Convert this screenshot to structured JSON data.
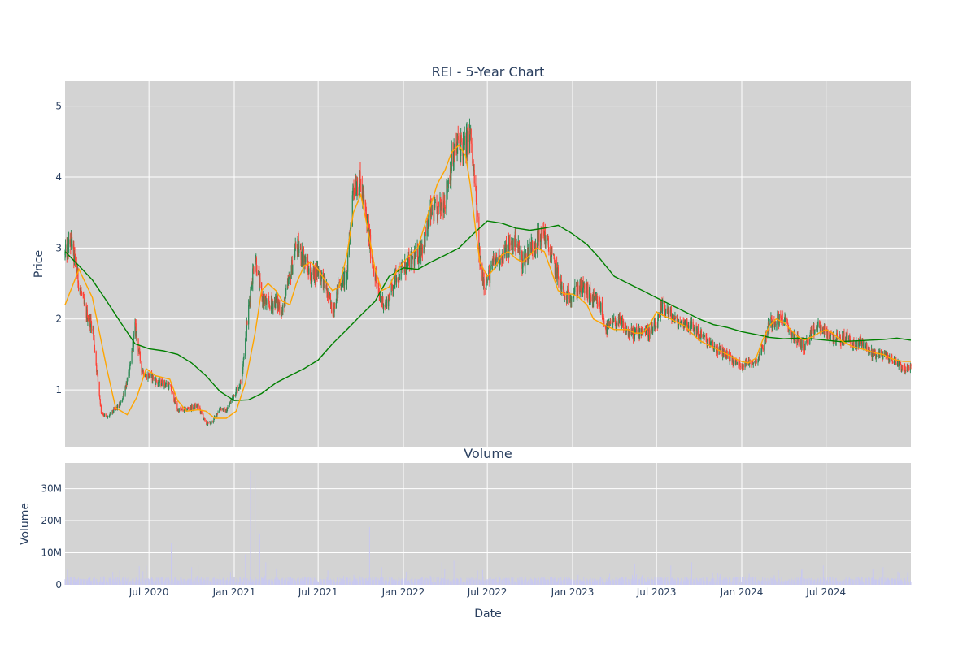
{
  "colors": {
    "page_bg": "#ffffff",
    "plot_bg": "#d3d3d3",
    "grid": "#ffffff",
    "text": "#2a3f5f",
    "candle_up": "#2e8b57",
    "candle_down": "#ff4136",
    "ma_short": "#ffa500",
    "ma_long": "#008000",
    "volume_bar": "#c9c9ef"
  },
  "chart_data": [
    {
      "type": "candlestick",
      "title": "REI - 5-Year Chart",
      "ylabel": "Price",
      "xlabel": "",
      "x_range": [
        "2020-01-02",
        "2024-12-31"
      ],
      "ylim": [
        0.2,
        5.35
      ],
      "yticks": [
        1,
        2,
        3,
        4,
        5
      ],
      "ytick_labels": [
        "1",
        "2",
        "3",
        "4",
        "5"
      ],
      "grid": true,
      "price_path": {
        "x": [
          "2020-01-02",
          "2020-01-15",
          "2020-02-01",
          "2020-02-15",
          "2020-03-01",
          "2020-03-10",
          "2020-03-20",
          "2020-04-01",
          "2020-04-15",
          "2020-05-01",
          "2020-05-20",
          "2020-06-01",
          "2020-06-15",
          "2020-06-25",
          "2020-07-05",
          "2020-07-20",
          "2020-08-01",
          "2020-08-15",
          "2020-09-01",
          "2020-09-15",
          "2020-10-01",
          "2020-10-15",
          "2020-11-01",
          "2020-11-15",
          "2020-12-01",
          "2020-12-15",
          "2021-01-01",
          "2021-01-15",
          "2021-01-25",
          "2021-02-05",
          "2021-02-15",
          "2021-03-01",
          "2021-03-15",
          "2021-04-01",
          "2021-04-15",
          "2021-05-01",
          "2021-05-15",
          "2021-06-01",
          "2021-06-15",
          "2021-07-01",
          "2021-07-15",
          "2021-08-01",
          "2021-08-15",
          "2021-09-01",
          "2021-09-15",
          "2021-10-01",
          "2021-10-15",
          "2021-11-01",
          "2021-11-10",
          "2021-11-25",
          "2021-12-15",
          "2022-01-01",
          "2022-01-15",
          "2022-02-01",
          "2022-02-15",
          "2022-03-01",
          "2022-03-15",
          "2022-04-01",
          "2022-04-15",
          "2022-05-01",
          "2022-05-15",
          "2022-05-25",
          "2022-06-05",
          "2022-06-15",
          "2022-06-25",
          "2022-07-05",
          "2022-07-15",
          "2022-08-01",
          "2022-08-15",
          "2022-09-01",
          "2022-09-15",
          "2022-10-01",
          "2022-10-15",
          "2022-11-01",
          "2022-11-15",
          "2022-12-01",
          "2022-12-15",
          "2023-01-01",
          "2023-01-15",
          "2023-02-01",
          "2023-02-15",
          "2023-03-01",
          "2023-03-15",
          "2023-04-01",
          "2023-04-15",
          "2023-05-01",
          "2023-05-15",
          "2023-06-01",
          "2023-06-15",
          "2023-07-01",
          "2023-07-15",
          "2023-08-01",
          "2023-08-15",
          "2023-09-01",
          "2023-09-15",
          "2023-10-01",
          "2023-10-15",
          "2023-11-01",
          "2023-11-15",
          "2023-12-01",
          "2023-12-15",
          "2024-01-01",
          "2024-01-15",
          "2024-02-01",
          "2024-02-15",
          "2024-03-01",
          "2024-03-15",
          "2024-04-01",
          "2024-04-15",
          "2024-05-01",
          "2024-05-15",
          "2024-06-01",
          "2024-06-15",
          "2024-07-01",
          "2024-07-15",
          "2024-08-01",
          "2024-08-15",
          "2024-09-01",
          "2024-09-15",
          "2024-10-01",
          "2024-10-15",
          "2024-11-01",
          "2024-11-15",
          "2024-12-01",
          "2024-12-15",
          "2024-12-31"
        ],
        "y": [
          2.9,
          3.1,
          2.5,
          2.1,
          1.9,
          1.3,
          0.7,
          0.6,
          0.7,
          0.8,
          1.25,
          1.9,
          1.3,
          1.2,
          1.2,
          1.1,
          1.1,
          1.05,
          0.72,
          0.72,
          0.75,
          0.78,
          0.52,
          0.55,
          0.75,
          0.7,
          0.95,
          1.1,
          1.7,
          2.4,
          2.9,
          2.3,
          2.2,
          2.25,
          2.1,
          2.6,
          3.05,
          2.85,
          2.6,
          2.7,
          2.5,
          2.1,
          2.5,
          2.6,
          3.9,
          3.9,
          3.3,
          2.6,
          2.3,
          2.2,
          2.6,
          2.7,
          2.8,
          2.9,
          3.1,
          3.5,
          3.5,
          3.7,
          4.2,
          4.5,
          4.4,
          4.6,
          3.8,
          2.8,
          2.5,
          2.6,
          2.8,
          2.9,
          3.0,
          3.1,
          2.8,
          3.0,
          3.1,
          3.2,
          2.9,
          2.6,
          2.3,
          2.35,
          2.45,
          2.4,
          2.25,
          2.2,
          1.85,
          1.95,
          1.95,
          1.8,
          1.8,
          1.85,
          1.8,
          1.9,
          2.2,
          2.05,
          1.95,
          1.95,
          1.9,
          1.8,
          1.7,
          1.6,
          1.55,
          1.5,
          1.4,
          1.35,
          1.4,
          1.4,
          1.6,
          1.95,
          2.0,
          2.0,
          1.8,
          1.7,
          1.6,
          1.8,
          1.9,
          1.8,
          1.75,
          1.7,
          1.75,
          1.6,
          1.7,
          1.55,
          1.5,
          1.5,
          1.45,
          1.4,
          1.3,
          1.3
        ]
      },
      "ma_short_path": {
        "x": [
          "2020-01-02",
          "2020-02-01",
          "2020-03-01",
          "2020-04-01",
          "2020-04-20",
          "2020-05-15",
          "2020-06-05",
          "2020-06-25",
          "2020-07-15",
          "2020-08-15",
          "2020-09-01",
          "2020-09-20",
          "2020-10-15",
          "2020-11-01",
          "2020-11-20",
          "2020-12-15",
          "2021-01-05",
          "2021-01-25",
          "2021-02-15",
          "2021-03-01",
          "2021-03-15",
          "2021-04-01",
          "2021-04-15",
          "2021-05-01",
          "2021-05-15",
          "2021-06-01",
          "2021-06-15",
          "2021-07-01",
          "2021-07-15",
          "2021-08-01",
          "2021-08-15",
          "2021-09-01",
          "2021-09-15",
          "2021-10-01",
          "2021-10-15",
          "2021-11-01",
          "2021-11-15",
          "2021-12-01",
          "2021-12-15",
          "2022-01-01",
          "2022-01-15",
          "2022-02-01",
          "2022-02-15",
          "2022-03-01",
          "2022-03-15",
          "2022-04-01",
          "2022-04-15",
          "2022-05-01",
          "2022-05-15",
          "2022-05-25",
          "2022-06-05",
          "2022-06-15",
          "2022-07-01",
          "2022-07-15",
          "2022-08-01",
          "2022-08-15",
          "2022-09-01",
          "2022-09-15",
          "2022-10-01",
          "2022-10-15",
          "2022-11-01",
          "2022-11-15",
          "2022-12-01",
          "2022-12-15",
          "2023-01-01",
          "2023-01-15",
          "2023-02-01",
          "2023-02-15",
          "2023-03-01",
          "2023-03-15",
          "2023-04-01",
          "2023-04-15",
          "2023-05-01",
          "2023-05-15",
          "2023-06-01",
          "2023-06-15",
          "2023-07-01",
          "2023-07-15",
          "2023-08-01",
          "2023-08-15",
          "2023-09-01",
          "2023-09-15",
          "2023-10-01",
          "2023-10-15",
          "2023-11-01",
          "2023-11-15",
          "2023-12-01",
          "2023-12-15",
          "2024-01-01",
          "2024-01-15",
          "2024-02-01",
          "2024-02-15",
          "2024-03-01",
          "2024-03-15",
          "2024-04-01",
          "2024-04-15",
          "2024-05-01",
          "2024-05-15",
          "2024-06-01",
          "2024-06-15",
          "2024-07-01",
          "2024-07-15",
          "2024-08-01",
          "2024-08-15",
          "2024-09-01",
          "2024-09-15",
          "2024-10-01",
          "2024-10-15",
          "2024-11-01",
          "2024-11-15",
          "2024-12-01",
          "2024-12-15",
          "2024-12-31"
        ],
        "y": [
          2.2,
          2.7,
          2.3,
          1.3,
          0.75,
          0.65,
          0.9,
          1.3,
          1.2,
          1.15,
          0.85,
          0.7,
          0.72,
          0.7,
          0.6,
          0.6,
          0.7,
          1.1,
          1.8,
          2.4,
          2.5,
          2.4,
          2.25,
          2.2,
          2.5,
          2.75,
          2.8,
          2.7,
          2.55,
          2.4,
          2.45,
          2.9,
          3.5,
          3.75,
          3.3,
          2.7,
          2.4,
          2.45,
          2.65,
          2.8,
          2.9,
          3.0,
          3.3,
          3.6,
          3.9,
          4.1,
          4.35,
          4.45,
          4.3,
          3.9,
          3.3,
          2.8,
          2.6,
          2.7,
          2.9,
          2.95,
          2.85,
          2.8,
          2.9,
          3.0,
          2.95,
          2.7,
          2.4,
          2.35,
          2.35,
          2.3,
          2.2,
          2.0,
          1.95,
          1.9,
          1.85,
          1.85,
          1.85,
          1.8,
          1.8,
          1.9,
          2.1,
          2.05,
          2.0,
          1.95,
          1.9,
          1.8,
          1.7,
          1.65,
          1.6,
          1.55,
          1.5,
          1.45,
          1.4,
          1.38,
          1.45,
          1.7,
          1.9,
          2.0,
          1.95,
          1.85,
          1.75,
          1.7,
          1.75,
          1.8,
          1.85,
          1.8,
          1.7,
          1.65,
          1.6,
          1.58,
          1.55,
          1.52,
          1.5,
          1.45,
          1.42,
          1.4,
          1.4
        ]
      },
      "ma_long_path": {
        "x": [
          "2020-01-02",
          "2020-02-01",
          "2020-03-01",
          "2020-04-01",
          "2020-05-01",
          "2020-06-01",
          "2020-07-01",
          "2020-08-01",
          "2020-09-01",
          "2020-10-01",
          "2020-11-01",
          "2020-12-01",
          "2021-01-01",
          "2021-02-01",
          "2021-03-01",
          "2021-04-01",
          "2021-05-01",
          "2021-06-01",
          "2021-07-01",
          "2021-08-01",
          "2021-09-01",
          "2021-10-01",
          "2021-11-01",
          "2021-12-01",
          "2022-01-01",
          "2022-02-01",
          "2022-03-01",
          "2022-04-01",
          "2022-05-01",
          "2022-06-01",
          "2022-07-01",
          "2022-08-01",
          "2022-09-01",
          "2022-10-01",
          "2022-11-01",
          "2022-12-01",
          "2023-01-01",
          "2023-02-01",
          "2023-03-01",
          "2023-04-01",
          "2023-05-01",
          "2023-06-01",
          "2023-07-01",
          "2023-08-01",
          "2023-09-01",
          "2023-10-01",
          "2023-11-01",
          "2023-12-01",
          "2024-01-01",
          "2024-02-01",
          "2024-03-01",
          "2024-04-01",
          "2024-05-01",
          "2024-06-01",
          "2024-07-01",
          "2024-08-01",
          "2024-09-01",
          "2024-10-01",
          "2024-11-01",
          "2024-12-01",
          "2024-12-31"
        ],
        "y": [
          2.95,
          2.75,
          2.55,
          2.25,
          1.95,
          1.65,
          1.58,
          1.55,
          1.5,
          1.38,
          1.2,
          0.98,
          0.85,
          0.86,
          0.95,
          1.1,
          1.2,
          1.3,
          1.42,
          1.65,
          1.85,
          2.05,
          2.25,
          2.6,
          2.72,
          2.7,
          2.8,
          2.9,
          3.0,
          3.2,
          3.38,
          3.35,
          3.28,
          3.25,
          3.28,
          3.32,
          3.2,
          3.05,
          2.85,
          2.6,
          2.5,
          2.4,
          2.3,
          2.2,
          2.1,
          2.0,
          1.92,
          1.88,
          1.82,
          1.78,
          1.74,
          1.72,
          1.73,
          1.72,
          1.7,
          1.68,
          1.69,
          1.7,
          1.71,
          1.73,
          1.7
        ]
      }
    },
    {
      "type": "bar",
      "title": "Volume",
      "ylabel": "Volume",
      "xlabel": "Date",
      "ylim": [
        0,
        38000000
      ],
      "yticks": [
        0,
        10000000,
        20000000,
        30000000
      ],
      "ytick_labels": [
        "0",
        "10M",
        "20M",
        "30M"
      ],
      "xticks": [
        "2020-07-01",
        "2021-01-01",
        "2021-07-01",
        "2022-01-01",
        "2022-07-01",
        "2023-01-01",
        "2023-07-01",
        "2024-01-01",
        "2024-07-01"
      ],
      "xtick_labels": [
        "Jul 2020",
        "Jan 2021",
        "Jul 2021",
        "Jan 2022",
        "Jul 2022",
        "Jan 2023",
        "Jul 2023",
        "Jan 2024",
        "Jul 2024"
      ],
      "grid": true,
      "baseline_volume": 1500000,
      "spikes": [
        {
          "date": "2020-06-10",
          "value": 5800000
        },
        {
          "date": "2020-06-25",
          "value": 6000000
        },
        {
          "date": "2020-08-18",
          "value": 13000000
        },
        {
          "date": "2020-10-01",
          "value": 5500000
        },
        {
          "date": "2020-10-15",
          "value": 6000000
        },
        {
          "date": "2021-01-10",
          "value": 13000000
        },
        {
          "date": "2021-01-25",
          "value": 9500000
        },
        {
          "date": "2021-02-05",
          "value": 35500000
        },
        {
          "date": "2021-02-15",
          "value": 34000000
        },
        {
          "date": "2021-02-25",
          "value": 16000000
        },
        {
          "date": "2021-03-10",
          "value": 7000000
        },
        {
          "date": "2021-06-05",
          "value": 7500000
        },
        {
          "date": "2021-10-20",
          "value": 18000000
        },
        {
          "date": "2021-11-15",
          "value": 5500000
        },
        {
          "date": "2022-03-25",
          "value": 7000000
        },
        {
          "date": "2022-04-20",
          "value": 7500000
        },
        {
          "date": "2022-05-15",
          "value": 6000000
        },
        {
          "date": "2022-06-25",
          "value": 11000000
        },
        {
          "date": "2022-11-05",
          "value": 6000000
        },
        {
          "date": "2023-05-15",
          "value": 6500000
        },
        {
          "date": "2023-08-01",
          "value": 6000000
        },
        {
          "date": "2023-09-15",
          "value": 7000000
        },
        {
          "date": "2024-03-20",
          "value": 4500000
        },
        {
          "date": "2024-06-25",
          "value": 6000000
        },
        {
          "date": "2024-10-10",
          "value": 5000000
        },
        {
          "date": "2024-11-01",
          "value": 5500000
        }
      ]
    }
  ]
}
